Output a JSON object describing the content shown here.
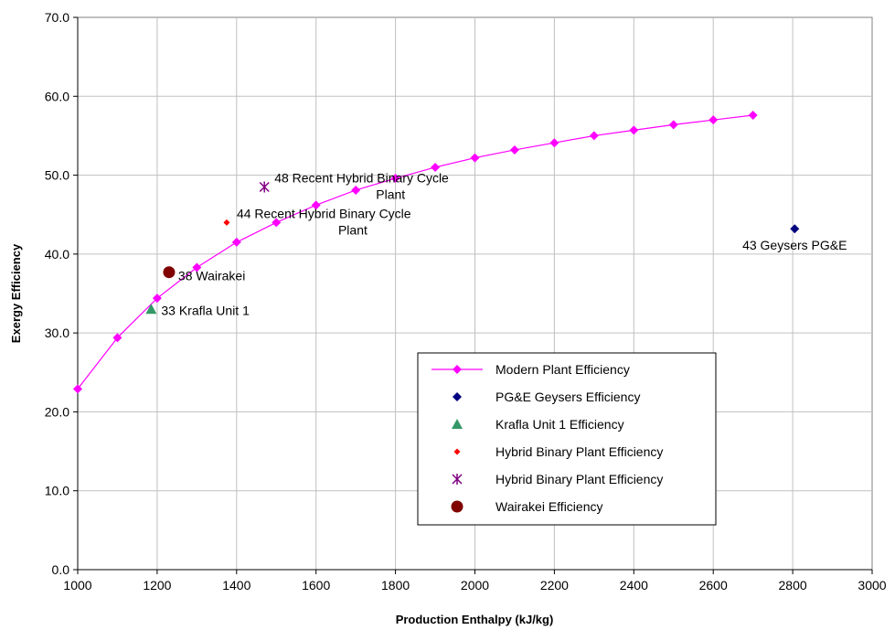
{
  "chart_data": {
    "type": "scatter",
    "xlabel": "Production Enthalpy (kJ/kg)",
    "ylabel": "Exergy Efficiency",
    "xlim": [
      1000,
      3000
    ],
    "ylim": [
      0,
      70
    ],
    "x_ticks": [
      "1000",
      "1200",
      "1400",
      "1600",
      "1800",
      "2000",
      "2200",
      "2400",
      "2600",
      "2800",
      "3000"
    ],
    "y_ticks": [
      "0.0",
      "10.0",
      "20.0",
      "30.0",
      "40.0",
      "50.0",
      "60.0",
      "70.0"
    ],
    "grid": true,
    "legend_position": "lower-right inside plot",
    "series": [
      {
        "name": "Modern Plant Efficiency",
        "kind": "line-with-diamond-markers",
        "color": "#ff00ff",
        "x": [
          1000,
          1100,
          1200,
          1300,
          1400,
          1500,
          1600,
          1700,
          1800,
          1900,
          2000,
          2100,
          2200,
          2300,
          2400,
          2500,
          2600,
          2700
        ],
        "y": [
          22.9,
          29.4,
          34.4,
          38.3,
          41.5,
          44.0,
          46.2,
          48.1,
          49.6,
          51.0,
          52.2,
          53.2,
          54.1,
          55.0,
          55.7,
          56.4,
          57.0,
          57.6
        ]
      },
      {
        "name": "PG&E Geysers Efficiency",
        "kind": "diamond",
        "color": "#000080",
        "x": [
          2805
        ],
        "y": [
          43.2
        ],
        "label": "43 Geysers PG&E"
      },
      {
        "name": "Krafla Unit 1 Efficiency",
        "kind": "triangle",
        "color": "#339966",
        "x": [
          1185
        ],
        "y": [
          33.0
        ],
        "label": "33 Krafla Unit 1"
      },
      {
        "name": "Hybrid Binary Plant Efficiency",
        "kind": "small-diamond",
        "color": "#ff0000",
        "x": [
          1375
        ],
        "y": [
          44.0
        ],
        "label": "44 Recent Hybrid Binary Cycle Plant"
      },
      {
        "name": "Hybrid Binary Plant Efficiency",
        "kind": "asterisk",
        "color": "#800080",
        "x": [
          1470
        ],
        "y": [
          48.5
        ],
        "label": "48 Recent Hybrid Binary Cycle Plant"
      },
      {
        "name": "Wairakei Efficiency",
        "kind": "circle",
        "color": "#800000",
        "x": [
          1230
        ],
        "y": [
          37.7
        ],
        "label": "38 Wairakei"
      }
    ]
  }
}
